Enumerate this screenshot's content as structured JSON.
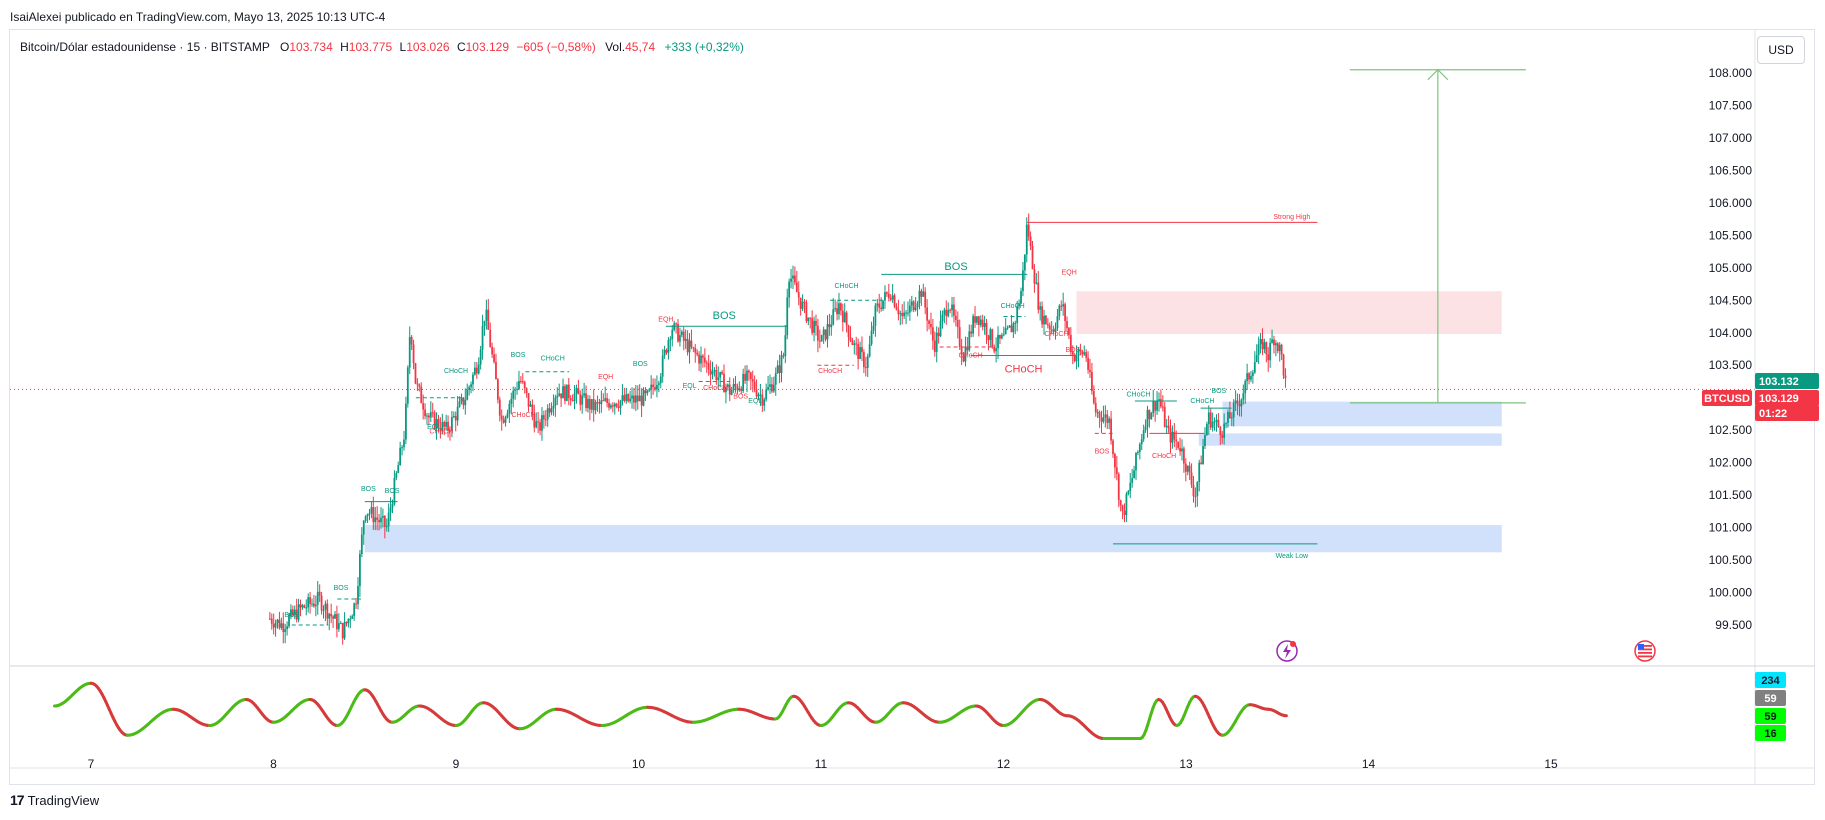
{
  "header": {
    "published": "IsaiAlexei publicado en TradingView.com, Mayo 13, 2025 10:13 UTC-4"
  },
  "legend": {
    "title": "Bitcoin/Dólar estadounidense · 15 · BITSTAMP",
    "o_key": "O",
    "o_val": "103.734",
    "h_key": "H",
    "h_val": "103.775",
    "l_key": "L",
    "l_val": "103.026",
    "c_key": "C",
    "c_val": "103.129",
    "change": "−605 (−0,58%)",
    "vol_key": "Vol.",
    "vol_val": "45,74",
    "vol_change": "+333 (+0,32%)"
  },
  "currency_button": "USD",
  "price_labels": {
    "symbol": "BTCUSD",
    "last": "103.129",
    "countdown": "01:22",
    "upper": "103.132"
  },
  "oscillator_labels": [
    "234",
    "59",
    "59",
    "16"
  ],
  "footer": {
    "brand": "TradingView",
    "logo": "17"
  },
  "colors": {
    "up": "#089981",
    "down": "#f23645",
    "demand_zone": "#c9dcfb",
    "supply_zone": "#fcdde0",
    "target": "#7cc47c",
    "osc_up": "#4cbb17",
    "osc_down": "#d63a3a"
  },
  "chart_data": {
    "type": "candlestick",
    "symbol": "BTCUSD",
    "timeframe": "15",
    "x_ticks": [
      "7",
      "8",
      "9",
      "10",
      "11",
      "12",
      "13",
      "14",
      "15"
    ],
    "y_ticks": [
      "108.000",
      "107.500",
      "107.000",
      "106.500",
      "106.000",
      "105.500",
      "105.000",
      "104.500",
      "104.000",
      "103.500",
      "103.000",
      "102.500",
      "102.000",
      "101.500",
      "101.000",
      "100.500",
      "100.000",
      "99.500"
    ],
    "ylim": [
      99200,
      108400
    ],
    "last_price": 103129,
    "price_path": [
      [
        7.98,
        99600
      ],
      [
        8.05,
        99500
      ],
      [
        8.15,
        99750
      ],
      [
        8.25,
        99900
      ],
      [
        8.38,
        99400
      ],
      [
        8.45,
        99850
      ],
      [
        8.5,
        101300
      ],
      [
        8.62,
        101000
      ],
      [
        8.72,
        102500
      ],
      [
        8.75,
        104150
      ],
      [
        8.78,
        103200
      ],
      [
        8.85,
        102700
      ],
      [
        8.95,
        102500
      ],
      [
        9.05,
        103000
      ],
      [
        9.12,
        103550
      ],
      [
        9.16,
        104350
      ],
      [
        9.25,
        102650
      ],
      [
        9.35,
        103300
      ],
      [
        9.45,
        102500
      ],
      [
        9.55,
        103100
      ],
      [
        9.65,
        103050
      ],
      [
        9.75,
        102850
      ],
      [
        9.85,
        102950
      ],
      [
        9.95,
        102950
      ],
      [
        10.05,
        103000
      ],
      [
        10.12,
        103400
      ],
      [
        10.18,
        104100
      ],
      [
        10.3,
        103700
      ],
      [
        10.4,
        103450
      ],
      [
        10.5,
        103100
      ],
      [
        10.6,
        103300
      ],
      [
        10.68,
        103000
      ],
      [
        10.75,
        103300
      ],
      [
        10.8,
        103700
      ],
      [
        10.82,
        104950
      ],
      [
        10.9,
        104400
      ],
      [
        11.0,
        103850
      ],
      [
        11.1,
        104450
      ],
      [
        11.18,
        103800
      ],
      [
        11.25,
        103500
      ],
      [
        11.3,
        104350
      ],
      [
        11.38,
        104650
      ],
      [
        11.45,
        104200
      ],
      [
        11.55,
        104650
      ],
      [
        11.62,
        103800
      ],
      [
        11.7,
        104500
      ],
      [
        11.78,
        103650
      ],
      [
        11.85,
        104300
      ],
      [
        11.9,
        104100
      ],
      [
        11.95,
        103800
      ],
      [
        12.0,
        103900
      ],
      [
        12.06,
        104150
      ],
      [
        12.1,
        104700
      ],
      [
        12.13,
        105700
      ],
      [
        12.15,
        105250
      ],
      [
        12.2,
        104300
      ],
      [
        12.27,
        104050
      ],
      [
        12.32,
        104450
      ],
      [
        12.38,
        103650
      ],
      [
        12.45,
        103700
      ],
      [
        12.5,
        102800
      ],
      [
        12.58,
        102650
      ],
      [
        12.65,
        101150
      ],
      [
        12.7,
        101700
      ],
      [
        12.78,
        102700
      ],
      [
        12.85,
        103000
      ],
      [
        12.9,
        102450
      ],
      [
        12.97,
        102250
      ],
      [
        13.05,
        101500
      ],
      [
        13.12,
        102700
      ],
      [
        13.2,
        102500
      ],
      [
        13.3,
        103000
      ],
      [
        13.38,
        103600
      ],
      [
        13.42,
        103850
      ],
      [
        13.45,
        103650
      ],
      [
        13.48,
        103950
      ],
      [
        13.52,
        103700
      ],
      [
        13.55,
        103129
      ]
    ],
    "zones": [
      {
        "type": "supply",
        "from_day": 12.4,
        "to_day": 14.73,
        "low": 103980,
        "high": 104640
      },
      {
        "type": "demand",
        "from_day": 13.2,
        "to_day": 14.73,
        "low": 102560,
        "high": 102940
      },
      {
        "type": "demand",
        "from_day": 13.07,
        "to_day": 14.73,
        "low": 102260,
        "high": 102450
      },
      {
        "type": "demand",
        "from_day": 8.5,
        "to_day": 14.73,
        "low": 100620,
        "high": 101040
      }
    ],
    "levels": [
      {
        "label": "Strong High",
        "price": 105700,
        "from_day": 12.13,
        "to_day": 13.72
      },
      {
        "label": "Weak Low",
        "price": 100750,
        "from_day": 12.6,
        "to_day": 13.72
      }
    ],
    "target_projection": {
      "from": 102920,
      "to": 108050,
      "day": 14.38
    },
    "annotations": [
      {
        "text": "BOS",
        "day": 10.47,
        "price": 104210,
        "big": true,
        "color": "#089981"
      },
      {
        "text": "BOS",
        "day": 11.74,
        "price": 104970,
        "big": true,
        "color": "#089981"
      },
      {
        "text": "CHoCH",
        "day": 12.11,
        "price": 103390,
        "big": true,
        "color": "#f23645"
      },
      {
        "text": "EQH",
        "day": 10.15,
        "price": 104170,
        "big": false,
        "color": "#f23645"
      },
      {
        "text": "EQH",
        "day": 12.36,
        "price": 104900,
        "big": false,
        "color": "#f23645"
      },
      {
        "text": "CHoCH",
        "day": 9.0,
        "price": 103380,
        "big": false,
        "color": "#089981"
      },
      {
        "text": "CHoCH",
        "day": 9.53,
        "price": 103570,
        "big": false,
        "color": "#089981"
      },
      {
        "text": "CHoCH",
        "day": 11.14,
        "price": 104690,
        "big": false,
        "color": "#089981"
      },
      {
        "text": "CHoCH",
        "day": 12.05,
        "price": 104380,
        "big": false,
        "color": "#089981"
      },
      {
        "text": "CHoCH",
        "day": 12.74,
        "price": 103020,
        "big": false,
        "color": "#089981"
      },
      {
        "text": "CHoCH",
        "day": 13.09,
        "price": 102920,
        "big": false,
        "color": "#089981"
      },
      {
        "text": "CHoCH",
        "day": 11.05,
        "price": 103380,
        "big": false,
        "color": "#f23645"
      },
      {
        "text": "CHoCH",
        "day": 11.82,
        "price": 103620,
        "big": false,
        "color": "#f23645"
      },
      {
        "text": "CHoCH",
        "day": 10.42,
        "price": 103120,
        "big": false,
        "color": "#f23645"
      },
      {
        "text": "CHoCH",
        "day": 12.29,
        "price": 103950,
        "big": false,
        "color": "#f23645"
      },
      {
        "text": "CHoCH",
        "day": 9.37,
        "price": 102700,
        "big": false,
        "color": "#f23645"
      },
      {
        "text": "CHoCH",
        "day": 12.88,
        "price": 102070,
        "big": false,
        "color": "#f23645"
      },
      {
        "text": "CHoCH",
        "day": 8.92,
        "price": 102450,
        "big": false,
        "color": "#f23645"
      },
      {
        "text": "BOS",
        "day": 8.1,
        "price": 99620,
        "big": false,
        "color": "#089981"
      },
      {
        "text": "BOS",
        "day": 8.37,
        "price": 100040,
        "big": false,
        "color": "#089981"
      },
      {
        "text": "BOS",
        "day": 8.52,
        "price": 101560,
        "big": false,
        "color": "#089981"
      },
      {
        "text": "BOS",
        "day": 8.65,
        "price": 101530,
        "big": false,
        "color": "#089981"
      },
      {
        "text": "BOS",
        "day": 9.34,
        "price": 103630,
        "big": false,
        "color": "#089981"
      },
      {
        "text": "BOS",
        "day": 10.01,
        "price": 103490,
        "big": false,
        "color": "#089981"
      },
      {
        "text": "BOS",
        "day": 13.18,
        "price": 103070,
        "big": false,
        "color": "#089981"
      },
      {
        "text": "BOS",
        "day": 10.56,
        "price": 102990,
        "big": false,
        "color": "#f23645"
      },
      {
        "text": "BOS",
        "day": 12.38,
        "price": 103700,
        "big": false,
        "color": "#f23645"
      },
      {
        "text": "BOS",
        "day": 12.54,
        "price": 102140,
        "big": false,
        "color": "#f23645"
      },
      {
        "text": "EQH",
        "day": 9.82,
        "price": 103290,
        "big": false,
        "color": "#f23645"
      },
      {
        "text": "EQL",
        "day": 8.88,
        "price": 102520,
        "big": false,
        "color": "#089981"
      },
      {
        "text": "EQL",
        "day": 10.28,
        "price": 103150,
        "big": false,
        "color": "#089981"
      },
      {
        "text": "EQL",
        "day": 10.64,
        "price": 102920,
        "big": false,
        "color": "#089981"
      },
      {
        "text": "Strong High",
        "day": 13.58,
        "price": 105750,
        "big": false,
        "color": "#f23645"
      },
      {
        "text": "Weak Low",
        "day": 13.58,
        "price": 100530,
        "big": false,
        "color": "#089981"
      }
    ],
    "oscillator": {
      "ylim": [
        0,
        100
      ],
      "bumps": [
        [
          6.8,
          60
        ],
        [
          7.0,
          95
        ],
        [
          7.2,
          15
        ],
        [
          7.45,
          55
        ],
        [
          7.65,
          30
        ],
        [
          7.85,
          70
        ],
        [
          8.0,
          35
        ],
        [
          8.2,
          70
        ],
        [
          8.35,
          30
        ],
        [
          8.5,
          85
        ],
        [
          8.65,
          35
        ],
        [
          8.8,
          60
        ],
        [
          9.0,
          30
        ],
        [
          9.15,
          65
        ],
        [
          9.35,
          25
        ],
        [
          9.55,
          55
        ],
        [
          9.8,
          30
        ],
        [
          10.05,
          58
        ],
        [
          10.3,
          35
        ],
        [
          10.55,
          55
        ],
        [
          10.75,
          40
        ],
        [
          10.85,
          75
        ],
        [
          11.0,
          30
        ],
        [
          11.15,
          65
        ],
        [
          11.3,
          35
        ],
        [
          11.45,
          65
        ],
        [
          11.65,
          35
        ],
        [
          11.85,
          60
        ],
        [
          12.0,
          30
        ],
        [
          12.2,
          70
        ],
        [
          12.35,
          45
        ],
        [
          12.55,
          10
        ],
        [
          12.75,
          10
        ],
        [
          12.85,
          70
        ],
        [
          12.95,
          30
        ],
        [
          13.05,
          75
        ],
        [
          13.2,
          15
        ],
        [
          13.35,
          62
        ],
        [
          13.45,
          55
        ],
        [
          13.55,
          45
        ]
      ]
    }
  }
}
